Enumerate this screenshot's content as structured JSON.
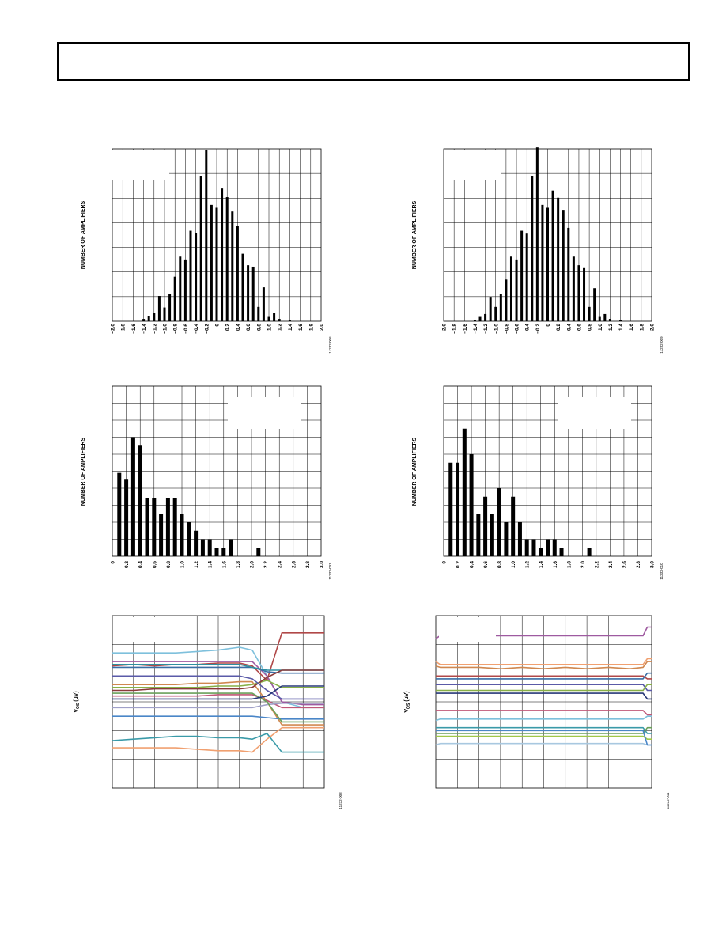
{
  "page": {
    "header_box": ""
  },
  "chart_data": [
    {
      "id": "hist-top-left",
      "type": "bar",
      "orientation": "rotated-90",
      "ylabel": "NUMBER OF AMPLIFIERS",
      "xlabel": "",
      "x_tick_labels": [
        "−2.0",
        "−1.8",
        "−1.6",
        "−1.4",
        "−1.2",
        "−1.0",
        "−0.8",
        "−0.6",
        "−0.4",
        "−0.2",
        "0",
        "0.2",
        "0.4",
        "0.6",
        "0.8",
        "1.0",
        "1.2",
        "1.4",
        "1.6",
        "1.8",
        "2.0"
      ],
      "xlim": [
        -2.0,
        2.0
      ],
      "ylim": [
        0,
        6.0
      ],
      "grid": true,
      "figure_id": "11232-006",
      "x": [
        -1.4,
        -1.3,
        -1.2,
        -1.1,
        -1.0,
        -0.9,
        -0.8,
        -0.7,
        -0.6,
        -0.5,
        -0.4,
        -0.3,
        -0.2,
        -0.1,
        0.0,
        0.1,
        0.2,
        0.3,
        0.4,
        0.5,
        0.6,
        0.7,
        0.8,
        0.9,
        1.0,
        1.1,
        1.2,
        1.3,
        1.4,
        1.5,
        1.6
      ],
      "values": [
        0.08,
        0.18,
        0.28,
        0.88,
        0.48,
        0.95,
        1.55,
        2.25,
        2.15,
        3.15,
        3.07,
        5.05,
        5.95,
        4.05,
        3.95,
        4.62,
        4.32,
        3.82,
        3.32,
        2.35,
        1.95,
        1.9,
        0.5,
        1.18,
        0.15,
        0.3,
        0.08,
        0.0,
        0.05,
        0.0,
        0.0
      ]
    },
    {
      "id": "hist-top-right",
      "type": "bar",
      "orientation": "rotated-90",
      "ylabel": "NUMBER OF AMPLIFIERS",
      "xlabel": "",
      "x_tick_labels": [
        "−2.0",
        "−1.8",
        "−1.6",
        "−1.4",
        "−1.2",
        "−1.0",
        "−0.8",
        "−0.6",
        "−0.4",
        "−0.2",
        "0",
        "0.2",
        "0.4",
        "0.6",
        "0.8",
        "1.0",
        "1.2",
        "1.4",
        "1.6",
        "1.8",
        "2.0"
      ],
      "xlim": [
        -2.0,
        2.0
      ],
      "ylim": [
        0,
        6.0
      ],
      "grid": true,
      "figure_id": "11232-009",
      "x": [
        -1.4,
        -1.3,
        -1.2,
        -1.1,
        -1.0,
        -0.9,
        -0.8,
        -0.7,
        -0.6,
        -0.5,
        -0.4,
        -0.3,
        -0.2,
        -0.1,
        0.0,
        0.1,
        0.2,
        0.3,
        0.4,
        0.5,
        0.6,
        0.7,
        0.8,
        0.9,
        1.0,
        1.1,
        1.2,
        1.3,
        1.4,
        1.5,
        1.6
      ],
      "values": [
        0.05,
        0.15,
        0.25,
        0.85,
        0.5,
        0.95,
        1.45,
        2.25,
        2.15,
        3.15,
        3.05,
        5.05,
        6.05,
        4.05,
        3.95,
        4.55,
        4.3,
        3.85,
        3.25,
        2.25,
        1.95,
        1.85,
        0.5,
        1.15,
        0.15,
        0.25,
        0.08,
        0.0,
        0.05,
        0.0,
        0.0
      ]
    },
    {
      "id": "hist-mid-left",
      "type": "bar",
      "orientation": "rotated-90",
      "ylabel": "NUMBER OF AMPLIFIERS",
      "xlabel": "",
      "x_tick_labels": [
        "0",
        "0.2",
        "0.4",
        "0.6",
        "0.8",
        "1.0",
        "1.2",
        "1.4",
        "1.6",
        "1.8",
        "2.0",
        "2.2",
        "2.4",
        "2.6",
        "2.8",
        "3.0"
      ],
      "xlim": [
        0,
        3.0
      ],
      "ylim": [
        0,
        10
      ],
      "grid": true,
      "figure_id": "11232-007",
      "x": [
        0.1,
        0.2,
        0.3,
        0.4,
        0.5,
        0.6,
        0.7,
        0.8,
        0.9,
        1.0,
        1.1,
        1.2,
        1.3,
        1.4,
        1.5,
        1.6,
        1.7,
        1.8,
        1.9,
        2.0,
        2.1
      ],
      "values": [
        4.9,
        4.5,
        7.0,
        6.5,
        3.4,
        3.4,
        2.5,
        3.4,
        3.4,
        2.5,
        2.0,
        1.5,
        1.0,
        1.0,
        0.5,
        0.5,
        1.0,
        0.0,
        0.0,
        0.0,
        0.5
      ]
    },
    {
      "id": "hist-mid-right",
      "type": "bar",
      "orientation": "rotated-90",
      "ylabel": "NUMBER OF AMPLIFIERS",
      "xlabel": "",
      "x_tick_labels": [
        "0",
        "0.2",
        "0.4",
        "0.6",
        "0.8",
        "1.0",
        "1.2",
        "1.4",
        "1.6",
        "1.8",
        "2.0",
        "2.2",
        "2.4",
        "2.6",
        "2.8",
        "3.0"
      ],
      "xlim": [
        0,
        3.0
      ],
      "ylim": [
        0,
        10
      ],
      "grid": true,
      "figure_id": "11232-010",
      "x": [
        0.1,
        0.2,
        0.3,
        0.4,
        0.5,
        0.6,
        0.7,
        0.8,
        0.9,
        1.0,
        1.1,
        1.2,
        1.3,
        1.4,
        1.5,
        1.6,
        1.7,
        1.8,
        1.9,
        2.0,
        2.1
      ],
      "values": [
        5.5,
        5.5,
        7.5,
        6.0,
        2.5,
        3.5,
        2.5,
        4.0,
        2.0,
        3.5,
        2.0,
        1.0,
        1.0,
        0.5,
        1.0,
        1.0,
        0.5,
        0.0,
        0.0,
        0.0,
        0.5
      ]
    },
    {
      "id": "drift-bottom-left",
      "type": "line",
      "ylabel": "VOS (µV)",
      "ylabel_main": "V",
      "ylabel_sub": "OS",
      "ylabel_unit": " (µV)",
      "xlabel": "",
      "xlim": [
        0,
        10
      ],
      "ylim": [
        -6,
        6
      ],
      "grid": true,
      "figure_id": "11232-008",
      "x": [
        0,
        1,
        2,
        3,
        4,
        5,
        6,
        6.6,
        7.3,
        8.0,
        9.0,
        10
      ],
      "series": [
        {
          "color": "#7ec0dc",
          "values": [
            3.4,
            3.4,
            3.4,
            3.4,
            3.5,
            3.6,
            3.8,
            3.6,
            1.8,
            0.0,
            -0.4,
            -0.4
          ]
        },
        {
          "color": "#b04848",
          "values": [
            2.5,
            2.6,
            2.5,
            2.6,
            2.6,
            2.7,
            2.7,
            2.5,
            1.5,
            4.8,
            4.8,
            4.8
          ]
        },
        {
          "color": "#9e5aa0",
          "values": [
            2.8,
            2.8,
            2.8,
            2.8,
            2.8,
            2.8,
            2.8,
            2.8,
            1.8,
            0.0,
            -0.2,
            -0.2
          ]
        },
        {
          "color": "#3a6ea5",
          "values": [
            2.4,
            2.4,
            2.4,
            2.4,
            2.4,
            2.4,
            2.4,
            2.4,
            2.1,
            2.0,
            2.0,
            2.0
          ]
        },
        {
          "color": "#2f8f9f",
          "values": [
            2.6,
            2.6,
            2.6,
            2.6,
            2.6,
            2.6,
            2.6,
            2.4,
            2.2,
            2.2,
            2.2,
            2.2
          ]
        },
        {
          "color": "#d08850",
          "values": [
            1.2,
            1.2,
            1.2,
            1.2,
            1.3,
            1.3,
            1.4,
            1.4,
            0.0,
            -1.6,
            -1.6,
            -1.6
          ]
        },
        {
          "color": "#88b048",
          "values": [
            1.0,
            1.0,
            1.0,
            1.0,
            1.0,
            1.1,
            1.1,
            1.2,
            1.5,
            1.0,
            1.0,
            1.0
          ]
        },
        {
          "color": "#c05878",
          "values": [
            0.4,
            0.4,
            0.4,
            0.4,
            0.4,
            0.5,
            0.5,
            0.5,
            0.1,
            -0.4,
            -0.4,
            -0.4
          ]
        },
        {
          "color": "#8a3a3a",
          "values": [
            0.8,
            0.8,
            0.9,
            0.9,
            0.9,
            0.9,
            0.9,
            1.0,
            1.7,
            2.2,
            2.2,
            2.2
          ]
        },
        {
          "color": "#5a5aa8",
          "values": [
            1.8,
            1.8,
            1.8,
            1.8,
            1.8,
            1.8,
            1.8,
            1.6,
            0.8,
            0.2,
            0.2,
            0.2
          ]
        },
        {
          "color": "#a0a0c8",
          "values": [
            -0.4,
            -0.4,
            -0.4,
            -0.4,
            -0.4,
            -0.4,
            -0.4,
            -0.4,
            -0.2,
            -0.1,
            -0.1,
            -0.1
          ]
        },
        {
          "color": "#4a86c8",
          "values": [
            -1.0,
            -1.0,
            -1.0,
            -1.0,
            -1.0,
            -1.0,
            -1.0,
            -1.0,
            -1.1,
            -1.2,
            -1.2,
            -1.2
          ]
        },
        {
          "color": "#3a9aa8",
          "values": [
            -2.7,
            -2.6,
            -2.5,
            -2.4,
            -2.4,
            -2.5,
            -2.5,
            -2.6,
            -2.2,
            -3.5,
            -3.5,
            -3.5
          ]
        },
        {
          "color": "#f0a070",
          "values": [
            -3.2,
            -3.2,
            -3.2,
            -3.2,
            -3.3,
            -3.4,
            -3.4,
            -3.5,
            -2.6,
            -1.8,
            -1.8,
            -1.8
          ]
        },
        {
          "color": "#6aa05a",
          "values": [
            0.6,
            0.6,
            0.6,
            0.6,
            0.6,
            0.6,
            0.6,
            0.6,
            0.0,
            -1.4,
            -1.4,
            -1.4
          ]
        },
        {
          "color": "#283878",
          "values": [
            0.2,
            0.2,
            0.2,
            0.2,
            0.2,
            0.2,
            0.2,
            0.2,
            0.4,
            1.1,
            1.1,
            1.1
          ]
        }
      ]
    },
    {
      "id": "drift-bottom-right",
      "type": "line",
      "ylabel": "VOS (µV)",
      "ylabel_main": "V",
      "ylabel_sub": "OS",
      "ylabel_unit": " (µV)",
      "xlabel": "",
      "xlim": [
        0,
        10
      ],
      "ylim": [
        -6,
        6
      ],
      "grid": true,
      "figure_id": "11232-011",
      "x": [
        0,
        0.2,
        1,
        2,
        3,
        4,
        5,
        6,
        7,
        8,
        9,
        9.6,
        9.8,
        10
      ],
      "series": [
        {
          "color": "#9e5aa0",
          "values": [
            4.4,
            4.6,
            4.6,
            4.6,
            4.6,
            4.6,
            4.6,
            4.6,
            4.6,
            4.6,
            4.6,
            4.6,
            5.2,
            5.2
          ]
        },
        {
          "color": "#d08850",
          "values": [
            2.5,
            2.4,
            2.4,
            2.4,
            2.3,
            2.4,
            2.3,
            2.4,
            2.3,
            2.4,
            2.3,
            2.4,
            2.8,
            2.8
          ]
        },
        {
          "color": "#f0a070",
          "values": [
            2.8,
            2.6,
            2.6,
            2.6,
            2.6,
            2.6,
            2.6,
            2.6,
            2.6,
            2.6,
            2.6,
            2.6,
            3.0,
            3.0
          ]
        },
        {
          "color": "#b04848",
          "values": [
            1.8,
            1.8,
            1.8,
            1.8,
            1.8,
            1.8,
            1.8,
            1.8,
            1.8,
            1.8,
            1.8,
            1.8,
            1.6,
            1.6
          ]
        },
        {
          "color": "#3a6ea5",
          "values": [
            1.6,
            1.6,
            1.6,
            1.6,
            1.6,
            1.6,
            1.6,
            1.6,
            1.6,
            1.6,
            1.6,
            1.6,
            2.0,
            2.0
          ]
        },
        {
          "color": "#5a5aa8",
          "values": [
            1.2,
            1.2,
            1.2,
            1.2,
            1.2,
            1.2,
            1.2,
            1.2,
            1.2,
            1.2,
            1.2,
            1.2,
            0.8,
            0.8
          ]
        },
        {
          "color": "#88b048",
          "values": [
            0.8,
            0.8,
            0.8,
            0.8,
            0.8,
            0.8,
            0.8,
            0.8,
            0.8,
            0.8,
            0.8,
            0.8,
            1.2,
            1.2
          ]
        },
        {
          "color": "#283878",
          "values": [
            0.6,
            0.6,
            0.6,
            0.6,
            0.6,
            0.6,
            0.6,
            0.6,
            0.6,
            0.6,
            0.6,
            0.6,
            0.2,
            0.2
          ]
        },
        {
          "color": "#c05878",
          "values": [
            -0.6,
            -0.6,
            -0.6,
            -0.6,
            -0.6,
            -0.6,
            -0.6,
            -0.6,
            -0.6,
            -0.6,
            -0.6,
            -0.6,
            -0.9,
            -0.9
          ]
        },
        {
          "color": "#7ec0dc",
          "values": [
            -1.3,
            -1.2,
            -1.2,
            -1.2,
            -1.2,
            -1.2,
            -1.2,
            -1.2,
            -1.2,
            -1.2,
            -1.2,
            -1.2,
            -1.0,
            -1.0
          ]
        },
        {
          "color": "#3a9aa8",
          "values": [
            -1.8,
            -1.8,
            -1.8,
            -1.8,
            -1.8,
            -1.8,
            -1.8,
            -1.8,
            -1.8,
            -1.8,
            -1.8,
            -1.8,
            -2.2,
            -2.2
          ]
        },
        {
          "color": "#6aa05a",
          "values": [
            -2.2,
            -2.2,
            -2.2,
            -2.2,
            -2.2,
            -2.2,
            -2.2,
            -2.2,
            -2.2,
            -2.2,
            -2.2,
            -2.2,
            -1.8,
            -1.8
          ]
        },
        {
          "color": "#a0c848",
          "values": [
            -2.4,
            -2.4,
            -2.4,
            -2.4,
            -2.4,
            -2.4,
            -2.4,
            -2.4,
            -2.4,
            -2.4,
            -2.4,
            -2.4,
            -2.6,
            -2.6
          ]
        },
        {
          "color": "#a8c8e0",
          "values": [
            -3.0,
            -2.9,
            -2.9,
            -2.9,
            -2.9,
            -2.9,
            -2.9,
            -2.9,
            -2.9,
            -2.9,
            -2.9,
            -2.9,
            -3.0,
            -3.0
          ]
        },
        {
          "color": "#4a86c8",
          "values": [
            -2.0,
            -2.0,
            -2.0,
            -2.0,
            -2.0,
            -2.0,
            -2.0,
            -2.0,
            -2.0,
            -2.0,
            -2.0,
            -2.0,
            -3.0,
            -3.0
          ]
        }
      ]
    }
  ]
}
